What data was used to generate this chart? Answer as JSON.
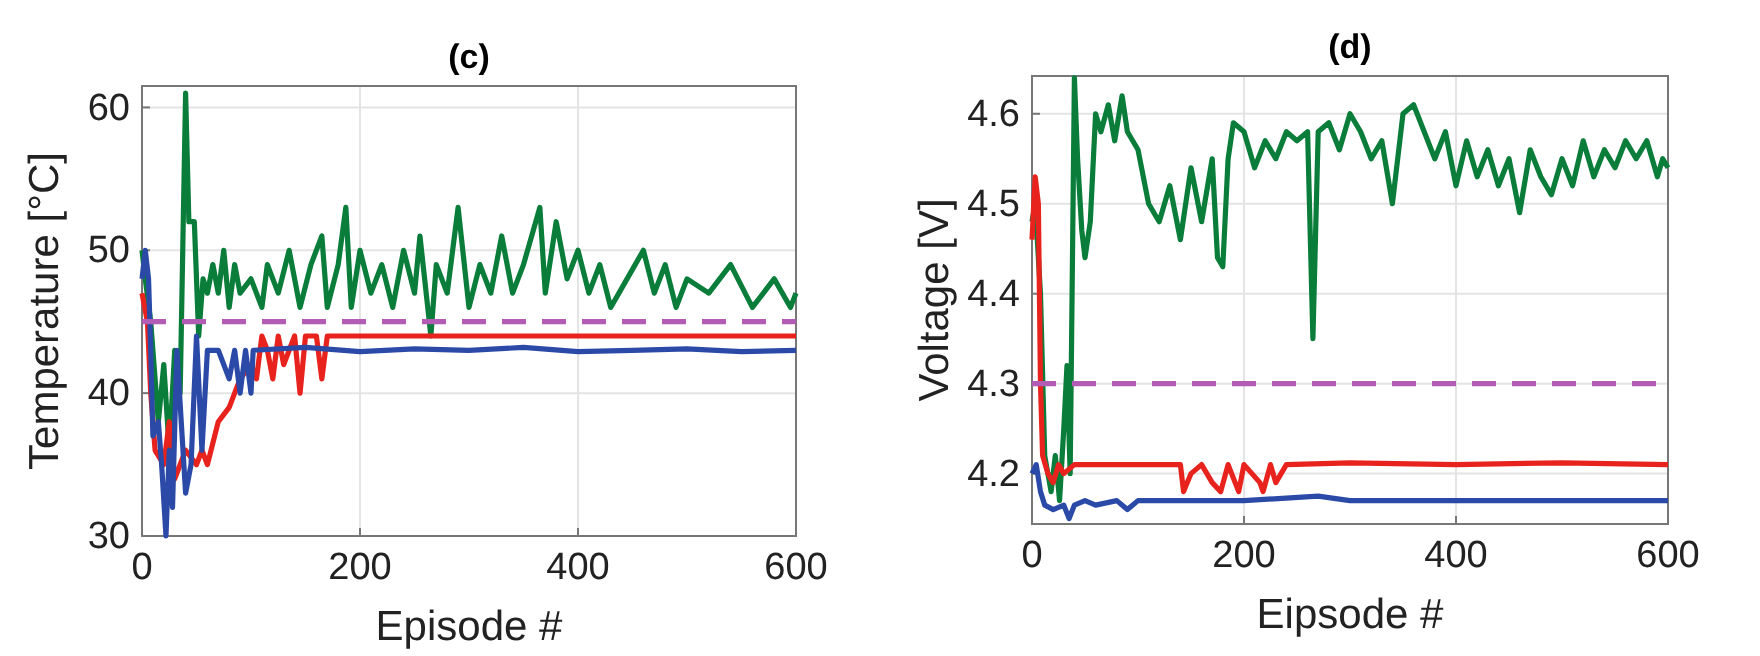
{
  "chart_data": [
    {
      "type": "line",
      "title": "(c)",
      "xlabel": "Episode #",
      "ylabel": "Temperature [°C]",
      "xlim": [
        0,
        600
      ],
      "ylim": [
        30,
        61.5
      ],
      "xticks": [
        0,
        200,
        400,
        600
      ],
      "yticks": [
        30,
        40,
        50,
        60
      ],
      "grid": true,
      "line_style": "solid",
      "marker": "none",
      "series": [
        {
          "color": "#0a7d3a",
          "x": [
            0,
            3,
            8,
            15,
            20,
            25,
            30,
            35,
            40,
            43,
            48,
            52,
            56,
            60,
            65,
            70,
            75,
            80,
            85,
            90,
            100,
            110,
            115,
            125,
            135,
            145,
            155,
            165,
            170,
            180,
            187,
            192,
            200,
            210,
            220,
            230,
            240,
            250,
            255,
            265,
            270,
            280,
            290,
            300,
            310,
            320,
            330,
            340,
            350,
            365,
            370,
            380,
            390,
            400,
            410,
            420,
            430,
            445,
            460,
            470,
            480,
            490,
            500,
            520,
            540,
            560,
            580,
            595,
            600
          ],
          "values": [
            50,
            48,
            45,
            38,
            42,
            36,
            43,
            40,
            61,
            52,
            52,
            44,
            48,
            47,
            49,
            47,
            50,
            46,
            49,
            47,
            48,
            46,
            49,
            47,
            50,
            46,
            49,
            51,
            46,
            49,
            53,
            46,
            50,
            47,
            49,
            46,
            50,
            47,
            51,
            44,
            49,
            47,
            53,
            46,
            49,
            47,
            51,
            47,
            49,
            53,
            47,
            52,
            48,
            50,
            47,
            49,
            46,
            48,
            50,
            47,
            49,
            46,
            48,
            47,
            49,
            46,
            48,
            46,
            47
          ]
        },
        {
          "color": "#e8231e",
          "x": [
            0,
            5,
            8,
            12,
            20,
            25,
            30,
            40,
            50,
            55,
            60,
            70,
            80,
            90,
            100,
            105,
            110,
            115,
            120,
            125,
            130,
            140,
            145,
            150,
            160,
            165,
            170,
            200,
            300,
            400,
            500,
            600
          ],
          "values": [
            47,
            45,
            40,
            36,
            35,
            38,
            34,
            36,
            35,
            36,
            35,
            38,
            39,
            41,
            42,
            41,
            44,
            43,
            41,
            44,
            42,
            44,
            40,
            44,
            44,
            41,
            44,
            44,
            44,
            44,
            44,
            44
          ]
        },
        {
          "color": "#2b4aa8",
          "x": [
            0,
            3,
            6,
            8,
            10,
            15,
            18,
            22,
            25,
            28,
            32,
            36,
            40,
            45,
            50,
            55,
            60,
            70,
            80,
            85,
            90,
            95,
            100,
            102,
            150,
            200,
            250,
            300,
            350,
            400,
            450,
            500,
            550,
            600
          ],
          "values": [
            48,
            50,
            48,
            43,
            37,
            38,
            35,
            30,
            36,
            32,
            43,
            38,
            33,
            35,
            44,
            36,
            43,
            43,
            41,
            43,
            40,
            43,
            40,
            43,
            43.2,
            42.9,
            43.1,
            43,
            43.2,
            42.9,
            43,
            43.1,
            42.9,
            43
          ]
        }
      ],
      "ref_lines": [
        {
          "axis": "y",
          "value": 45,
          "color": "#b25cb5",
          "line_style": "dashed"
        }
      ]
    },
    {
      "type": "line",
      "title": "(d)",
      "xlabel": "Eipsode #",
      "ylabel": "Voltage [V]",
      "xlim": [
        0,
        600
      ],
      "ylim": [
        4.144,
        4.642
      ],
      "xticks": [
        0,
        200,
        400,
        600
      ],
      "yticks": [
        {
          "value": 4.2,
          "label": "4.2"
        },
        {
          "value": 4.3,
          "label": "4.3"
        },
        {
          "value": 4.4,
          "label": "4.4"
        },
        {
          "value": 4.5,
          "label": "4.5"
        },
        {
          "value": 4.6,
          "label": "4.6"
        }
      ],
      "grid": true,
      "line_style": "solid",
      "marker": "none",
      "series": [
        {
          "color": "#0a7d3a",
          "x": [
            0,
            3,
            8,
            12,
            18,
            22,
            26,
            30,
            33,
            36,
            40,
            43,
            47,
            50,
            55,
            60,
            65,
            72,
            78,
            85,
            90,
            100,
            110,
            120,
            130,
            140,
            150,
            160,
            170,
            175,
            180,
            185,
            190,
            200,
            210,
            220,
            230,
            240,
            250,
            260,
            265,
            270,
            280,
            290,
            300,
            310,
            320,
            330,
            340,
            350,
            360,
            370,
            380,
            390,
            400,
            410,
            420,
            430,
            440,
            450,
            460,
            470,
            480,
            490,
            500,
            510,
            520,
            530,
            540,
            550,
            560,
            570,
            580,
            590,
            595,
            600
          ],
          "values": [
            4.48,
            4.5,
            4.4,
            4.22,
            4.18,
            4.22,
            4.17,
            4.25,
            4.32,
            4.2,
            4.64,
            4.55,
            4.47,
            4.44,
            4.48,
            4.6,
            4.58,
            4.61,
            4.57,
            4.62,
            4.58,
            4.56,
            4.5,
            4.48,
            4.52,
            4.46,
            4.54,
            4.48,
            4.55,
            4.44,
            4.43,
            4.55,
            4.59,
            4.58,
            4.54,
            4.57,
            4.55,
            4.58,
            4.57,
            4.58,
            4.35,
            4.58,
            4.59,
            4.56,
            4.6,
            4.58,
            4.55,
            4.57,
            4.5,
            4.6,
            4.61,
            4.58,
            4.55,
            4.58,
            4.52,
            4.57,
            4.53,
            4.56,
            4.52,
            4.55,
            4.49,
            4.56,
            4.53,
            4.51,
            4.55,
            4.52,
            4.57,
            4.53,
            4.56,
            4.54,
            4.57,
            4.55,
            4.57,
            4.53,
            4.55,
            4.54
          ]
        },
        {
          "color": "#e8231e",
          "x": [
            0,
            3,
            6,
            8,
            10,
            15,
            20,
            25,
            30,
            40,
            140,
            143,
            150,
            160,
            170,
            178,
            185,
            195,
            200,
            215,
            218,
            225,
            230,
            240,
            300,
            400,
            500,
            600
          ],
          "values": [
            4.46,
            4.53,
            4.5,
            4.3,
            4.22,
            4.2,
            4.19,
            4.21,
            4.2,
            4.21,
            4.21,
            4.18,
            4.2,
            4.21,
            4.19,
            4.18,
            4.21,
            4.18,
            4.21,
            4.19,
            4.18,
            4.21,
            4.19,
            4.21,
            4.212,
            4.21,
            4.212,
            4.21
          ]
        },
        {
          "color": "#2b4aa8",
          "x": [
            0,
            4,
            8,
            12,
            20,
            30,
            35,
            40,
            50,
            60,
            80,
            90,
            100,
            200,
            270,
            300,
            400,
            500,
            600
          ],
          "values": [
            4.2,
            4.21,
            4.18,
            4.165,
            4.16,
            4.165,
            4.15,
            4.165,
            4.17,
            4.165,
            4.17,
            4.16,
            4.17,
            4.17,
            4.175,
            4.17,
            4.17,
            4.17,
            4.17
          ]
        }
      ],
      "ref_lines": [
        {
          "axis": "y",
          "value": 4.3,
          "color": "#b25cb5",
          "line_style": "dashed"
        }
      ]
    }
  ]
}
